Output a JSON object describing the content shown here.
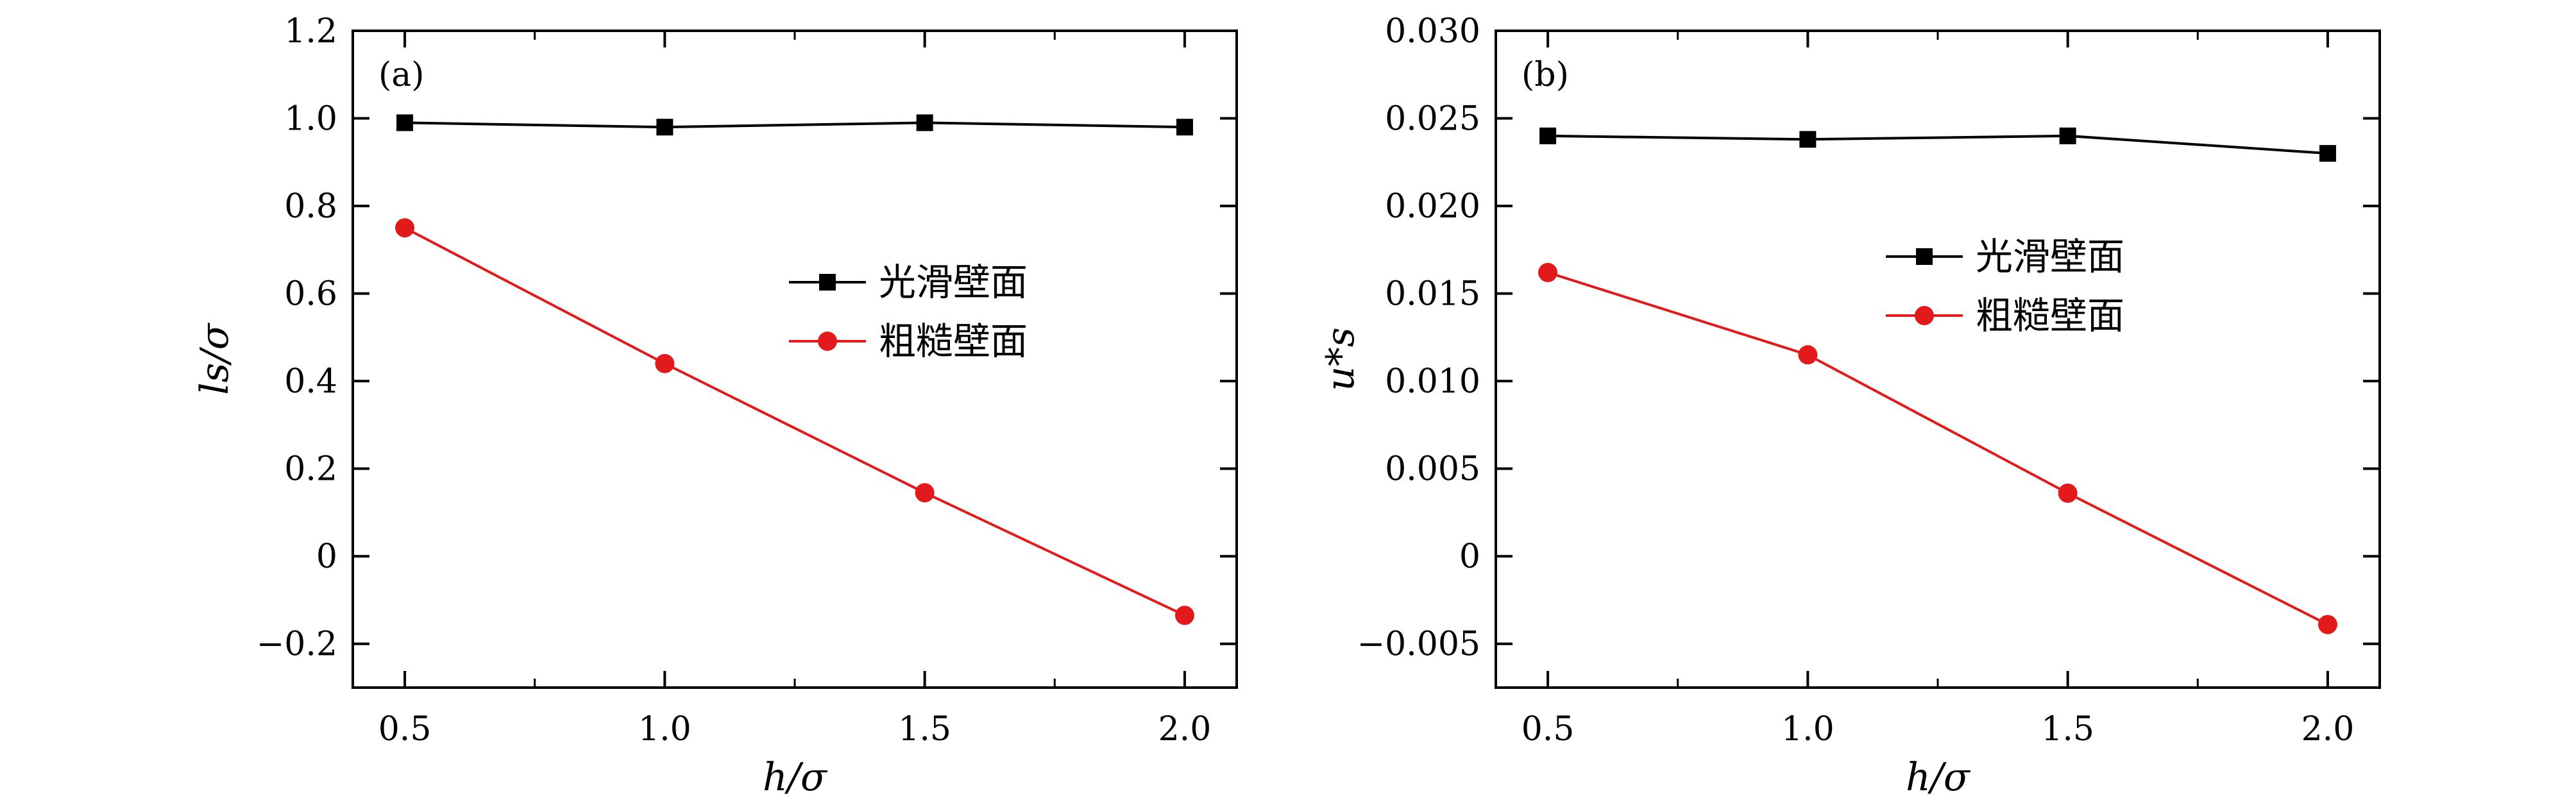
{
  "colors": {
    "smooth": "#000000",
    "rough": "#e31a1c",
    "frame": "#000000",
    "background": "#ffffff"
  },
  "chart_data": [
    {
      "type": "line",
      "panel_label": "(a)",
      "xlabel": "h/σ",
      "ylabel": "ls/σ",
      "x": [
        0.5,
        1.0,
        1.5,
        2.0
      ],
      "xlim": [
        0.4,
        2.1
      ],
      "ylim": [
        -0.3,
        1.2
      ],
      "xticks": [
        0.5,
        1.0,
        1.5,
        2.0
      ],
      "xtick_labels": [
        "0.5",
        "1.0",
        "1.5",
        "2.0"
      ],
      "yticks": [
        -0.2,
        0,
        0.2,
        0.4,
        0.6,
        0.8,
        1.0,
        1.2
      ],
      "ytick_labels": [
        "−0.2",
        "0",
        "0.2",
        "0.4",
        "0.6",
        "0.8",
        "1.0",
        "1.2"
      ],
      "grid": false,
      "legend_position": "center-right",
      "series": [
        {
          "name": "光滑壁面",
          "marker": "square",
          "color": "#000000",
          "values": [
            0.99,
            0.98,
            0.99,
            0.98
          ]
        },
        {
          "name": "粗糙壁面",
          "marker": "circle",
          "color": "#e31a1c",
          "values": [
            0.75,
            0.44,
            0.145,
            -0.135
          ]
        }
      ]
    },
    {
      "type": "line",
      "panel_label": "(b)",
      "xlabel": "h/σ",
      "ylabel": "u*s",
      "x": [
        0.5,
        1.0,
        1.5,
        2.0
      ],
      "xlim": [
        0.4,
        2.1
      ],
      "ylim": [
        -0.0075,
        0.03
      ],
      "xticks": [
        0.5,
        1.0,
        1.5,
        2.0
      ],
      "xtick_labels": [
        "0.5",
        "1.0",
        "1.5",
        "2.0"
      ],
      "yticks": [
        -0.005,
        0,
        0.005,
        0.01,
        0.015,
        0.02,
        0.025,
        0.03
      ],
      "ytick_labels": [
        "−0.005",
        "0",
        "0.005",
        "0.010",
        "0.015",
        "0.020",
        "0.025",
        "0.030"
      ],
      "grid": false,
      "legend_position": "upper-right",
      "series": [
        {
          "name": "光滑壁面",
          "marker": "square",
          "color": "#000000",
          "values": [
            0.024,
            0.0238,
            0.024,
            0.023
          ]
        },
        {
          "name": "粗糙壁面",
          "marker": "circle",
          "color": "#e31a1c",
          "values": [
            0.0162,
            0.0115,
            0.0036,
            -0.0039
          ]
        }
      ]
    }
  ]
}
